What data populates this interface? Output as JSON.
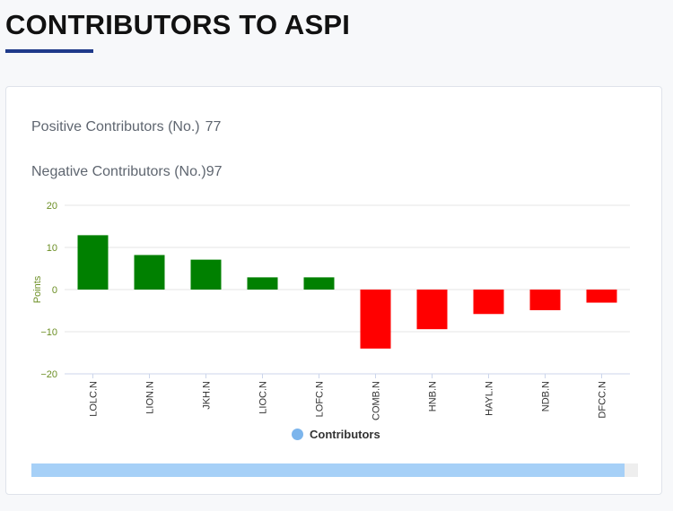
{
  "page": {
    "title": "CONTRIBUTORS TO ASPI"
  },
  "stats": {
    "positive_label": "Positive Contributors (No.)",
    "positive_value": "77",
    "negative_label": "Negative Contributors (No.)",
    "negative_value": "97"
  },
  "colors": {
    "positive": "#008000",
    "negative": "#ff0000",
    "legend_dot": "#7cb5ec",
    "axis_label": "#6b8e23",
    "accent": "#1f3a8a"
  },
  "chart_data": {
    "type": "bar",
    "title": "",
    "xlabel": "",
    "ylabel": "Points",
    "ylim": [
      -20,
      20
    ],
    "yticks": [
      20,
      10,
      0,
      -10,
      -20
    ],
    "ytick_labels": [
      "20",
      "10",
      "0",
      "−10",
      "−20"
    ],
    "categories": [
      "LOLC.N",
      "LION.N",
      "JKH.N",
      "LIOC.N",
      "LOFC.N",
      "COMB.N",
      "HNB.N",
      "HAYL.N",
      "NDB.N",
      "DFCC.N"
    ],
    "series": [
      {
        "name": "Contributors",
        "values": [
          12.9,
          8.2,
          7.1,
          2.9,
          2.9,
          -14.0,
          -9.4,
          -5.8,
          -4.9,
          -3.1
        ]
      }
    ],
    "legend": "bottom-center",
    "grid": true
  }
}
